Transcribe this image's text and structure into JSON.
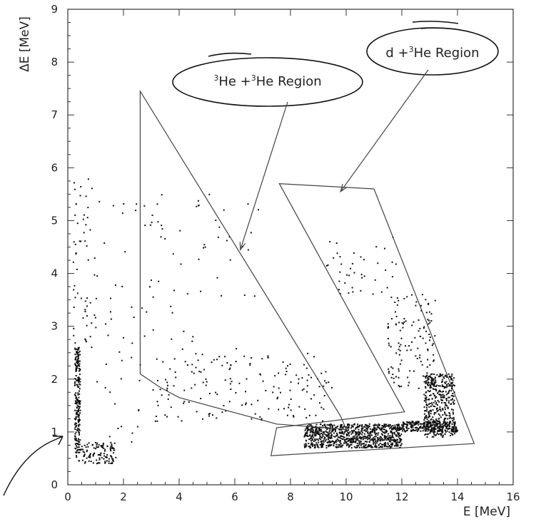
{
  "chart_data": {
    "type": "scatter",
    "title": "",
    "xlabel": "E [MeV]",
    "ylabel": "ΔE [MeV]",
    "xlim": [
      0,
      16
    ],
    "ylim": [
      0,
      9
    ],
    "xticks": [
      0,
      2,
      4,
      6,
      8,
      10,
      12,
      14,
      16
    ],
    "yticks": [
      0,
      1,
      2,
      3,
      4,
      5,
      6,
      7,
      8,
      9
    ],
    "grid": false,
    "regions": [
      {
        "name": "³He +³He Region",
        "label_prefix_sup": "3",
        "label_mid": "He +",
        "label_mid_sup": "3",
        "label_suffix": "He Region",
        "polygon": [
          [
            2.6,
            7.45
          ],
          [
            9.8,
            1.3
          ],
          [
            10.0,
            1.05
          ],
          [
            7.5,
            1.15
          ],
          [
            4.0,
            1.65
          ],
          [
            3.3,
            1.85
          ],
          [
            2.6,
            2.1
          ]
        ],
        "arrow_to": [
          6.2,
          4.45
        ]
      },
      {
        "name": "d +³He Region",
        "label_prefix": "d +",
        "label_sup": "3",
        "label_suffix": "He Region",
        "polygon": [
          [
            7.6,
            5.7
          ],
          [
            11.0,
            5.6
          ],
          [
            14.6,
            0.78
          ],
          [
            7.3,
            0.55
          ],
          [
            7.5,
            1.08
          ],
          [
            12.1,
            1.38
          ]
        ],
        "arrow_to": [
          9.8,
          5.55
        ]
      }
    ],
    "series": [
      {
        "clusters": [
          {
            "x": [
              0.25,
              0.45
            ],
            "y": [
              0.6,
              2.6
            ],
            "n": 230
          },
          {
            "x": [
              0.3,
              1.7
            ],
            "y": [
              0.4,
              0.8
            ],
            "n": 120
          },
          {
            "x": [
              0.2,
              1.1
            ],
            "y": [
              2.6,
              6.0
            ],
            "n": 60
          },
          {
            "x": [
              8.5,
              12.0
            ],
            "y": [
              0.7,
              1.15
            ],
            "n": 900
          },
          {
            "x": [
              12.0,
              14.0
            ],
            "y": [
              1.0,
              1.2
            ],
            "n": 260
          },
          {
            "x": [
              12.8,
              13.9
            ],
            "y": [
              0.9,
              2.1
            ],
            "n": 420
          },
          {
            "x": [
              11.5,
              13.2
            ],
            "y": [
              1.8,
              3.6
            ],
            "n": 130
          },
          {
            "x": [
              9.3,
              11.8
            ],
            "y": [
              3.6,
              4.7
            ],
            "n": 40
          },
          {
            "x": [
              3.0,
              9.5
            ],
            "y": [
              1.2,
              2.5
            ],
            "n": 170
          },
          {
            "x": [
              2.8,
              7.0
            ],
            "y": [
              2.5,
              5.5
            ],
            "n": 55
          },
          {
            "x": [
              1.0,
              2.8
            ],
            "y": [
              0.5,
              5.5
            ],
            "n": 45
          }
        ]
      }
    ]
  }
}
